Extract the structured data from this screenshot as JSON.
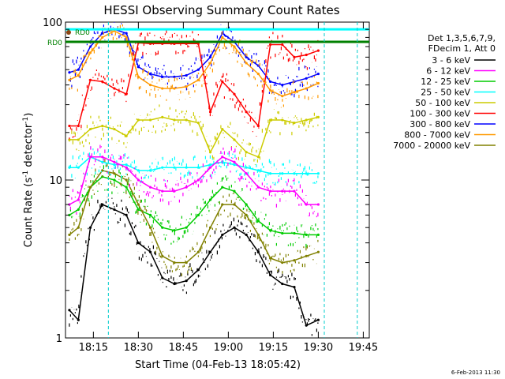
{
  "chart_data": {
    "type": "line",
    "title": "HESSI Observing Summary Count Rates",
    "xlabel": "Start Time (04-Feb-13 18:05:42)",
    "ylabel": "Count Rate (s⁻¹ detector⁻¹)",
    "ylabel_main": "Count Rate (s",
    "ylabel_sup1": "-1",
    "ylabel_mid": " detector",
    "ylabel_sup2": "-1",
    "ylabel_end": ")",
    "yscale": "log",
    "ylim": [
      1,
      100
    ],
    "xlim": [
      "18:05:42",
      "19:47:00"
    ],
    "x_ticks": [
      "18:15",
      "18:30",
      "18:45",
      "19:00",
      "19:15",
      "19:30",
      "19:45"
    ],
    "y_ticks": [
      "1",
      "10",
      "100"
    ],
    "timestamp": "6-Feb-2013 11:30",
    "legend_title": [
      "Det 1,3,5,6,7,9,",
      "FDecim 1, Att 0"
    ],
    "legend_placement": "right",
    "flag_labels": [
      "RD0",
      "RD0"
    ],
    "series": [
      {
        "name": "3 - 6 keV",
        "color": "#000000",
        "values": [
          1.5,
          1.3,
          5,
          7,
          6.5,
          6,
          4,
          3.5,
          2.4,
          2.2,
          2.3,
          2.7,
          3.5,
          4.5,
          5,
          4.5,
          3.5,
          2.5,
          2.2,
          2.1,
          1.2,
          1.3
        ]
      },
      {
        "name": "6 - 12 keV",
        "color": "#ff00ff",
        "values": [
          7,
          7.5,
          14,
          14,
          13,
          12,
          10,
          9,
          8.5,
          8.5,
          9,
          10,
          12,
          14,
          13,
          11,
          9,
          8.5,
          8.5,
          8.5,
          7,
          7
        ]
      },
      {
        "name": "12 - 25 keV",
        "color": "#00cc00",
        "values": [
          6,
          6.5,
          9,
          10.5,
          10,
          9,
          6.5,
          6,
          5,
          4.8,
          5,
          6,
          7.5,
          9,
          8.5,
          7,
          5.5,
          4.8,
          4.6,
          4.6,
          4.5,
          4.5
        ]
      },
      {
        "name": "25 - 50 keV",
        "color": "#00ffff",
        "values": [
          12,
          12,
          14,
          13,
          12.5,
          12.5,
          11.5,
          11.5,
          12,
          12,
          12,
          12,
          12.5,
          13,
          12.5,
          12,
          11.5,
          11,
          11,
          11,
          11,
          11
        ]
      },
      {
        "name": "50 - 100 keV",
        "color": "#cccc00",
        "values": [
          18,
          18,
          21,
          22,
          21,
          19,
          24,
          24,
          25,
          24,
          24,
          23,
          15,
          21,
          18,
          15,
          14,
          24,
          24,
          23,
          24,
          25
        ]
      },
      {
        "name": "100 - 300 keV",
        "color": "#ff0000",
        "values": [
          22,
          22,
          43,
          42,
          38,
          35,
          74,
          73,
          73,
          73,
          73,
          73,
          27,
          42,
          35,
          27,
          22,
          72,
          72,
          60,
          62,
          66
        ]
      },
      {
        "name": "300 - 800 keV",
        "color": "#0000ff",
        "values": [
          48,
          50,
          70,
          85,
          90,
          85,
          52,
          47,
          45,
          45,
          46,
          50,
          60,
          85,
          75,
          60,
          53,
          42,
          40,
          42,
          44,
          47
        ]
      },
      {
        "name": "800 - 7000 keV",
        "color": "#ff9900",
        "values": [
          43,
          46,
          64,
          80,
          88,
          80,
          45,
          40,
          38,
          38,
          39,
          43,
          55,
          80,
          70,
          55,
          47,
          37,
          34,
          36,
          38,
          41
        ]
      },
      {
        "name": "7000 - 20000 keV",
        "color": "#808000",
        "values": [
          4.5,
          5,
          9,
          11.5,
          11,
          10,
          7,
          5,
          3.3,
          3,
          3,
          3.5,
          5,
          7,
          7,
          6,
          4.5,
          3.2,
          3,
          3.1,
          3.3,
          3.5
        ]
      }
    ],
    "x": [
      "18:07",
      "18:10",
      "18:14",
      "18:18",
      "18:22",
      "18:26",
      "18:30",
      "18:34",
      "18:38",
      "18:42",
      "18:46",
      "18:50",
      "18:54",
      "18:58",
      "19:02",
      "19:06",
      "19:10",
      "19:14",
      "19:18",
      "19:22",
      "19:26",
      "19:30"
    ],
    "rd0_level": 75,
    "saa_level": 90
  }
}
